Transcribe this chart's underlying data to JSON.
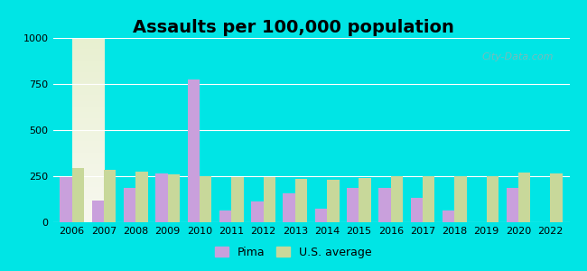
{
  "title": "Assaults per 100,000 population",
  "years": [
    2006,
    2007,
    2008,
    2009,
    2010,
    2011,
    2012,
    2013,
    2014,
    2015,
    2016,
    2017,
    2018,
    2019,
    2020,
    2022
  ],
  "pima": [
    245,
    120,
    185,
    265,
    775,
    65,
    115,
    155,
    75,
    185,
    185,
    130,
    65,
    0,
    185,
    0
  ],
  "us_avg": [
    295,
    285,
    275,
    258,
    252,
    245,
    245,
    235,
    232,
    242,
    248,
    248,
    248,
    248,
    270,
    265
  ],
  "pima_color": "#c9a0dc",
  "us_avg_color": "#c8d89a",
  "ylim": [
    0,
    1000
  ],
  "yticks": [
    0,
    250,
    500,
    750,
    1000
  ],
  "background_top": "#e8f0d0",
  "background_bottom": "#f5f5e8",
  "outer_bg": "#00e5e5",
  "title_fontsize": 14,
  "watermark": "City-Data.com"
}
